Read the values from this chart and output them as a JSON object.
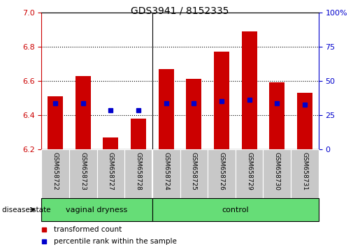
{
  "title": "GDS3941 / 8152335",
  "samples": [
    "GSM658722",
    "GSM658723",
    "GSM658727",
    "GSM658728",
    "GSM658724",
    "GSM658725",
    "GSM658726",
    "GSM658729",
    "GSM658730",
    "GSM658731"
  ],
  "bar_bottoms": [
    6.2,
    6.2,
    6.2,
    6.2,
    6.2,
    6.2,
    6.2,
    6.2,
    6.2,
    6.2
  ],
  "bar_tops": [
    6.51,
    6.63,
    6.27,
    6.38,
    6.67,
    6.61,
    6.77,
    6.89,
    6.59,
    6.53
  ],
  "percentile_values": [
    6.47,
    6.47,
    6.43,
    6.43,
    6.47,
    6.47,
    6.48,
    6.49,
    6.47,
    6.46
  ],
  "groups": [
    {
      "label": "vaginal dryness",
      "start": 0,
      "end": 4
    },
    {
      "label": "control",
      "start": 4,
      "end": 10
    }
  ],
  "ylim_left": [
    6.2,
    7.0
  ],
  "ylim_right": [
    0,
    100
  ],
  "yticks_left": [
    6.2,
    6.4,
    6.6,
    6.8,
    7.0
  ],
  "yticks_right": [
    0,
    25,
    50,
    75,
    100
  ],
  "bar_color": "#cc0000",
  "dot_color": "#0000cc",
  "group_fill_color": "#66dd77",
  "group_border_color": "#000000",
  "axis_left_color": "#cc0000",
  "axis_right_color": "#0000cc",
  "grid_color": "#000000",
  "sample_area_color": "#c8c8c8",
  "sample_border_color": "#aaaaaa",
  "bar_width": 0.55,
  "legend_items": [
    {
      "label": "transformed count",
      "color": "#cc0000"
    },
    {
      "label": "percentile rank within the sample",
      "color": "#0000cc"
    }
  ],
  "disease_state_label": "disease state"
}
